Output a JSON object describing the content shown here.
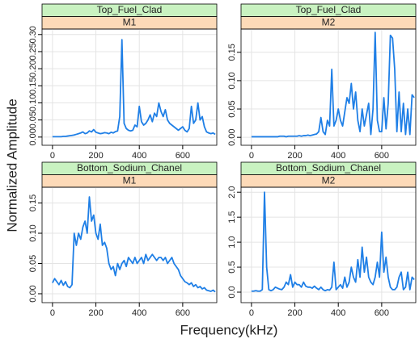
{
  "xlabel": "Frequency(kHz)",
  "ylabel": "Normalized Amplitude",
  "chart_data": [
    {
      "type": "line",
      "title": "Top_Fuel_Clad",
      "subtitle": "M1",
      "color": "#1f7fe6",
      "grid": true,
      "x": [
        0,
        10,
        20,
        30,
        40,
        50,
        60,
        70,
        80,
        90,
        100,
        110,
        120,
        130,
        140,
        150,
        160,
        170,
        180,
        190,
        200,
        210,
        220,
        230,
        240,
        250,
        260,
        270,
        280,
        290,
        300,
        310,
        320,
        330,
        340,
        350,
        360,
        370,
        380,
        390,
        400,
        410,
        420,
        430,
        440,
        450,
        460,
        470,
        480,
        490,
        500,
        510,
        520,
        530,
        540,
        550,
        560,
        570,
        580,
        590,
        600,
        610,
        620,
        630,
        640,
        650,
        660,
        670,
        680,
        690,
        700,
        710,
        720,
        730,
        740,
        750
      ],
      "values": [
        0.001,
        0.001,
        0.001,
        0.001,
        0.001,
        0.002,
        0.002,
        0.003,
        0.004,
        0.005,
        0.006,
        0.008,
        0.01,
        0.012,
        0.015,
        0.01,
        0.012,
        0.018,
        0.015,
        0.022,
        0.014,
        0.012,
        0.01,
        0.011,
        0.013,
        0.012,
        0.01,
        0.014,
        0.012,
        0.016,
        0.018,
        0.06,
        0.285,
        0.04,
        0.025,
        0.02,
        0.018,
        0.02,
        0.035,
        0.03,
        0.09,
        0.045,
        0.035,
        0.04,
        0.05,
        0.065,
        0.045,
        0.07,
        0.06,
        0.1,
        0.075,
        0.06,
        0.08,
        0.05,
        0.04,
        0.035,
        0.03,
        0.025,
        0.02,
        0.025,
        0.03,
        0.02,
        0.015,
        0.025,
        0.09,
        0.04,
        0.05,
        0.1,
        0.05,
        0.06,
        0.03,
        0.015,
        0.012,
        0.01,
        0.012,
        0.008
      ],
      "xlim": [
        -48,
        757
      ],
      "xticks": [
        0,
        200,
        400,
        600
      ],
      "ylim": [
        -0.024,
        0.316
      ],
      "yticks": [
        {
          "value": 0,
          "label": "0.00"
        },
        0.05,
        {
          "value": 0.1,
          "label": "0.10"
        },
        0.15,
        {
          "value": 0.2,
          "label": "0.20"
        },
        0.25,
        {
          "value": 0.3,
          "label": "0.30"
        }
      ]
    },
    {
      "type": "line",
      "title": "Top_Fuel_Clad",
      "subtitle": "M2",
      "color": "#1f7fe6",
      "grid": true,
      "x": [
        0,
        10,
        20,
        30,
        40,
        50,
        60,
        70,
        80,
        90,
        100,
        110,
        120,
        130,
        140,
        150,
        160,
        170,
        180,
        190,
        200,
        210,
        220,
        230,
        240,
        250,
        260,
        270,
        280,
        290,
        300,
        310,
        320,
        330,
        340,
        350,
        360,
        370,
        380,
        390,
        400,
        410,
        420,
        430,
        440,
        450,
        460,
        470,
        480,
        490,
        500,
        510,
        520,
        530,
        540,
        550,
        560,
        570,
        580,
        590,
        600,
        610,
        620,
        630,
        640,
        650,
        660,
        670,
        680,
        690,
        700,
        710,
        720,
        730,
        740,
        750
      ],
      "values": [
        0.001,
        0.001,
        0.001,
        0.001,
        0.001,
        0.001,
        0.001,
        0.001,
        0.001,
        0.001,
        0.001,
        0.001,
        0.001,
        0.002,
        0.002,
        0.002,
        0.001,
        0.002,
        0.002,
        0.002,
        0.002,
        0.002,
        0.003,
        0.002,
        0.003,
        0.003,
        0.004,
        0.003,
        0.004,
        0.005,
        0.006,
        0.01,
        0.035,
        0.01,
        0.005,
        0.03,
        0.02,
        0.12,
        0.02,
        0.03,
        0.05,
        0.03,
        0.02,
        0.045,
        0.07,
        0.06,
        0.095,
        0.05,
        0.08,
        0.03,
        0.01,
        0.05,
        0.02,
        0.04,
        0.06,
        0.005,
        0.05,
        0.185,
        0.03,
        0.01,
        0.01,
        0.07,
        0.015,
        0.06,
        0.18,
        0.175,
        0.12,
        0.01,
        0.08,
        0.01,
        0.06,
        0.005,
        0.05,
        0.005,
        0.075,
        0.07
      ],
      "xlim": [
        -48,
        757
      ],
      "xticks": [
        0,
        200,
        400,
        600
      ],
      "ylim": [
        -0.014,
        0.191
      ],
      "yticks": [
        {
          "value": 0,
          "label": "0.00"
        },
        0.05,
        {
          "value": 0.1,
          "label": "0.10"
        },
        0.15
      ]
    },
    {
      "type": "line",
      "title": "Bottom_Sodium_Chanel",
      "subtitle": "M1",
      "color": "#1f7fe6",
      "grid": true,
      "x": [
        0,
        10,
        20,
        30,
        40,
        50,
        60,
        70,
        80,
        90,
        100,
        110,
        120,
        130,
        140,
        150,
        160,
        170,
        180,
        190,
        200,
        210,
        220,
        230,
        240,
        250,
        260,
        270,
        280,
        290,
        300,
        310,
        320,
        330,
        340,
        350,
        360,
        370,
        380,
        390,
        400,
        410,
        420,
        430,
        440,
        450,
        460,
        470,
        480,
        490,
        500,
        510,
        520,
        530,
        540,
        550,
        560,
        570,
        580,
        590,
        600,
        610,
        620,
        630,
        640,
        650,
        660,
        670,
        680,
        690,
        700,
        710,
        720,
        730,
        740,
        750
      ],
      "values": [
        0.018,
        0.025,
        0.02,
        0.015,
        0.022,
        0.014,
        0.02,
        0.012,
        0.01,
        0.015,
        0.1,
        0.08,
        0.1,
        0.09,
        0.11,
        0.12,
        0.1,
        0.16,
        0.12,
        0.13,
        0.1,
        0.09,
        0.115,
        0.08,
        0.085,
        0.075,
        0.05,
        0.04,
        0.045,
        0.03,
        0.05,
        0.04,
        0.05,
        0.055,
        0.045,
        0.06,
        0.055,
        0.05,
        0.06,
        0.05,
        0.055,
        0.06,
        0.05,
        0.065,
        0.055,
        0.06,
        0.065,
        0.06,
        0.055,
        0.06,
        0.06,
        0.055,
        0.06,
        0.05,
        0.055,
        0.06,
        0.05,
        0.045,
        0.04,
        0.03,
        0.025,
        0.02,
        0.018,
        0.015,
        0.018,
        0.012,
        0.015,
        0.01,
        0.012,
        0.008,
        0.01,
        0.006,
        0.005,
        0.004,
        0.006,
        0.003
      ],
      "xlim": [
        -48,
        757
      ],
      "xticks": [
        0,
        200,
        400,
        600
      ],
      "ylim": [
        -0.0147,
        0.176
      ],
      "yticks": [
        {
          "value": 0,
          "label": "0.00"
        },
        0.05,
        {
          "value": 0.1,
          "label": "0.10"
        },
        0.15
      ]
    },
    {
      "type": "line",
      "title": "Bottom_Sodium_Chanel",
      "subtitle": "M2",
      "color": "#1f7fe6",
      "grid": true,
      "x": [
        0,
        10,
        20,
        30,
        40,
        50,
        60,
        70,
        80,
        90,
        100,
        110,
        120,
        130,
        140,
        150,
        160,
        170,
        180,
        190,
        200,
        210,
        220,
        230,
        240,
        250,
        260,
        270,
        280,
        290,
        300,
        310,
        320,
        330,
        340,
        350,
        360,
        370,
        380,
        390,
        400,
        410,
        420,
        430,
        440,
        450,
        460,
        470,
        480,
        490,
        500,
        510,
        520,
        530,
        540,
        550,
        560,
        570,
        580,
        590,
        600,
        610,
        620,
        630,
        640,
        650,
        660,
        670,
        680,
        690,
        700,
        710,
        720,
        730,
        740,
        750
      ],
      "values": [
        0.02,
        0.02,
        0.03,
        0.02,
        0.02,
        0.05,
        2.0,
        0.5,
        0.05,
        0.03,
        0.05,
        0.1,
        0.08,
        0.06,
        0.05,
        0.1,
        0.2,
        0.15,
        0.35,
        0.1,
        0.2,
        0.15,
        0.15,
        0.1,
        0.2,
        0.12,
        0.1,
        0.1,
        0.08,
        0.12,
        0.08,
        0.05,
        0.1,
        0.05,
        0.03,
        0.05,
        0.04,
        0.1,
        0.6,
        0.05,
        0.1,
        0.15,
        0.08,
        0.3,
        0.1,
        0.2,
        0.5,
        0.3,
        0.2,
        0.65,
        0.3,
        0.9,
        0.4,
        0.7,
        0.3,
        0.2,
        0.15,
        0.3,
        0.6,
        0.3,
        1.2,
        0.4,
        0.7,
        0.3,
        0.1,
        0.05,
        0.05,
        0.1,
        0.3,
        0.4,
        0.05,
        0.1,
        0.4,
        0.05,
        0.3,
        0.25
      ],
      "xlim": [
        -48,
        757
      ],
      "xticks": [
        0,
        200,
        400,
        600
      ],
      "ylim": [
        -0.21,
        2.1
      ],
      "yticks": [
        {
          "value": 0,
          "label": "0.0"
        },
        0.5,
        {
          "value": 1,
          "label": "1.0"
        },
        1.5,
        {
          "value": 2,
          "label": "2.0"
        }
      ]
    }
  ]
}
